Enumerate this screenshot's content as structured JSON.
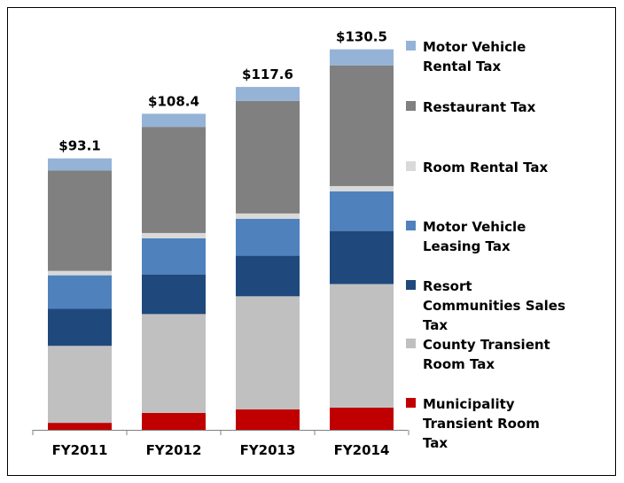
{
  "chart_data": {
    "type": "stacked-bar",
    "categories": [
      "FY2011",
      "FY2012",
      "FY2013",
      "FY2014"
    ],
    "totals": {
      "values": [
        93.1,
        108.4,
        117.6,
        130.5
      ],
      "value_labels": [
        "$93.1",
        "$108.4",
        "$117.6",
        "$130.5"
      ]
    },
    "series": [
      {
        "name": "Motor Vehicle Rental Tax",
        "color": "#95b3d7",
        "values": [
          4.2,
          4.5,
          4.8,
          5.5
        ]
      },
      {
        "name": "Restaurant Tax",
        "color": "#808080",
        "values": [
          34.4,
          36.4,
          38.6,
          41.4
        ]
      },
      {
        "name": "Room Rental Tax",
        "color": "#d9d9d9",
        "values": [
          1.5,
          1.8,
          1.8,
          1.8
        ]
      },
      {
        "name": "Motor Vehicle Leasing Tax",
        "color": "#4f81bd",
        "values": [
          11.5,
          12.4,
          12.7,
          13.6
        ]
      },
      {
        "name": "Resort Communities Sales Tax",
        "color": "#1f497d",
        "values": [
          12.7,
          13.6,
          13.9,
          18.2
        ]
      },
      {
        "name": "County Transient Room Tax",
        "color": "#c0c0c0",
        "values": [
          26.4,
          33.9,
          38.8,
          42.4
        ]
      },
      {
        "name": "Municipality Transient Room Tax",
        "color": "#c00000",
        "values": [
          2.4,
          5.8,
          7.0,
          7.6
        ]
      }
    ]
  }
}
